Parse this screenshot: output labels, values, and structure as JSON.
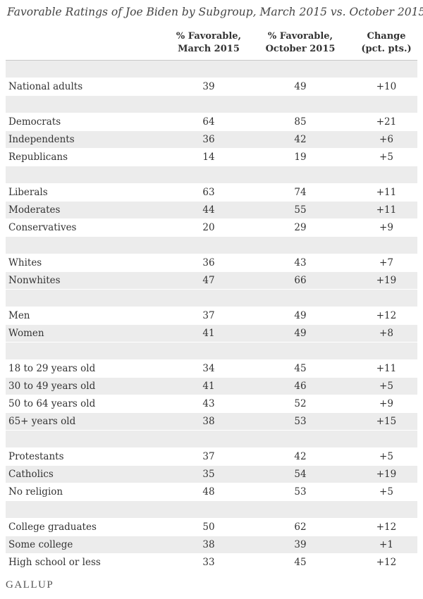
{
  "title": "Favorable Ratings of Joe Biden by Subgroup, March 2015 vs. October 2015",
  "columns": {
    "c1": "% Favorable,\nMarch 2015",
    "c2": "% Favorable,\nOctober 2015",
    "c3": "Change\n(pct. pts.)"
  },
  "logo": "GALLUP",
  "colors": {
    "band": "#ececec",
    "text": "#333333",
    "rule": "#c8c8c8"
  },
  "chart_data": {
    "type": "table",
    "title": "Favorable Ratings of Joe Biden by Subgroup, March 2015 vs. October 2015",
    "headers": [
      "% Favorable, March 2015",
      "% Favorable, October 2015",
      "Change (pct. pts.)"
    ],
    "groups": [
      [
        {
          "label": "National adults",
          "march": "39",
          "october": "49",
          "change": "+10"
        }
      ],
      [
        {
          "label": "Democrats",
          "march": "64",
          "october": "85",
          "change": "+21"
        },
        {
          "label": "Independents",
          "march": "36",
          "october": "42",
          "change": "+6"
        },
        {
          "label": "Republicans",
          "march": "14",
          "october": "19",
          "change": "+5"
        }
      ],
      [
        {
          "label": "Liberals",
          "march": "63",
          "october": "74",
          "change": "+11"
        },
        {
          "label": "Moderates",
          "march": "44",
          "october": "55",
          "change": "+11"
        },
        {
          "label": "Conservatives",
          "march": "20",
          "october": "29",
          "change": "+9"
        }
      ],
      [
        {
          "label": "Whites",
          "march": "36",
          "october": "43",
          "change": "+7"
        },
        {
          "label": "Nonwhites",
          "march": "47",
          "october": "66",
          "change": "+19"
        }
      ],
      [
        {
          "label": "Men",
          "march": "37",
          "october": "49",
          "change": "+12"
        },
        {
          "label": "Women",
          "march": "41",
          "october": "49",
          "change": "+8"
        }
      ],
      [
        {
          "label": "18 to 29 years old",
          "march": "34",
          "october": "45",
          "change": "+11"
        },
        {
          "label": "30 to 49 years old",
          "march": "41",
          "october": "46",
          "change": "+5"
        },
        {
          "label": "50 to 64 years old",
          "march": "43",
          "october": "52",
          "change": "+9"
        },
        {
          "label": "65+ years old",
          "march": "38",
          "october": "53",
          "change": "+15"
        }
      ],
      [
        {
          "label": "Protestants",
          "march": "37",
          "october": "42",
          "change": "+5"
        },
        {
          "label": "Catholics",
          "march": "35",
          "october": "54",
          "change": "+19"
        },
        {
          "label": "No religion",
          "march": "48",
          "october": "53",
          "change": "+5"
        }
      ],
      [
        {
          "label": "College graduates",
          "march": "50",
          "october": "62",
          "change": "+12"
        },
        {
          "label": "Some college",
          "march": "38",
          "october": "39",
          "change": "+1"
        },
        {
          "label": "High school or less",
          "march": "33",
          "october": "45",
          "change": "+12"
        }
      ]
    ]
  }
}
